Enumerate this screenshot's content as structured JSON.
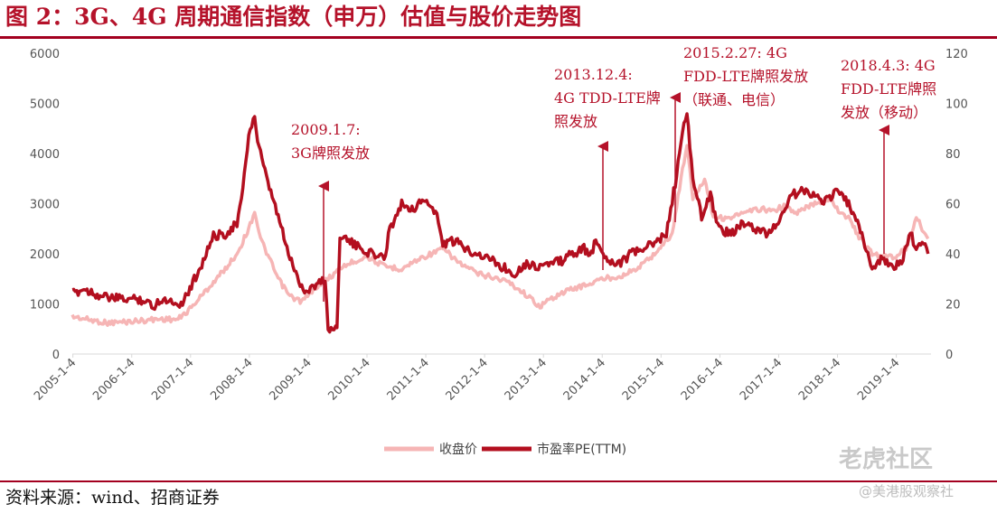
{
  "figure": {
    "title": "图 2：3G、4G 周期通信指数（申万）估值与股价走势图",
    "source": "资料来源：wind、招商证券",
    "watermark": "老虎社区",
    "watermark_sub": "@美港股观察社"
  },
  "chart_data": {
    "type": "line",
    "title": "",
    "x_ticks": [
      "2005-1-4",
      "2006-1-4",
      "2007-1-4",
      "2008-1-4",
      "2009-1-4",
      "2010-1-4",
      "2011-1-4",
      "2012-1-4",
      "2013-1-4",
      "2014-1-4",
      "2015-1-4",
      "2016-1-4",
      "2017-1-4",
      "2018-1-4",
      "2019-1-4"
    ],
    "y_left": {
      "min": 0,
      "max": 6000,
      "ticks": [
        0,
        1000,
        2000,
        3000,
        4000,
        5000,
        6000
      ]
    },
    "y_right": {
      "min": 0,
      "max": 120,
      "ticks": [
        0,
        20,
        40,
        60,
        80,
        100,
        120
      ]
    },
    "legend": {
      "position": "bottom"
    },
    "series": [
      {
        "name": "收盘价",
        "axis": "left",
        "color": "#f6b5b5",
        "points": [
          [
            2005.0,
            750
          ],
          [
            2005.3,
            680
          ],
          [
            2005.6,
            620
          ],
          [
            2006.0,
            650
          ],
          [
            2006.5,
            700
          ],
          [
            2006.8,
            690
          ],
          [
            2007.0,
            900
          ],
          [
            2007.3,
            1300
          ],
          [
            2007.6,
            1700
          ],
          [
            2007.8,
            2000
          ],
          [
            2008.0,
            2500
          ],
          [
            2008.1,
            2850
          ],
          [
            2008.2,
            2300
          ],
          [
            2008.35,
            1900
          ],
          [
            2008.5,
            1500
          ],
          [
            2008.7,
            1150
          ],
          [
            2008.9,
            1050
          ],
          [
            2009.0,
            1150
          ],
          [
            2009.2,
            1400
          ],
          [
            2009.4,
            1550
          ],
          [
            2009.6,
            1750
          ],
          [
            2009.8,
            1850
          ],
          [
            2010.0,
            1950
          ],
          [
            2010.3,
            1750
          ],
          [
            2010.6,
            1700
          ],
          [
            2010.9,
            1900
          ],
          [
            2011.1,
            2000
          ],
          [
            2011.3,
            2100
          ],
          [
            2011.6,
            1800
          ],
          [
            2011.9,
            1600
          ],
          [
            2012.1,
            1550
          ],
          [
            2012.4,
            1450
          ],
          [
            2012.7,
            1200
          ],
          [
            2012.95,
            950
          ],
          [
            2013.2,
            1150
          ],
          [
            2013.5,
            1300
          ],
          [
            2013.8,
            1400
          ],
          [
            2014.0,
            1500
          ],
          [
            2014.3,
            1550
          ],
          [
            2014.6,
            1700
          ],
          [
            2014.9,
            2000
          ],
          [
            2015.2,
            2400
          ],
          [
            2015.35,
            3500
          ],
          [
            2015.45,
            4200
          ],
          [
            2015.55,
            3100
          ],
          [
            2015.75,
            3500
          ],
          [
            2015.9,
            2750
          ],
          [
            2016.1,
            2700
          ],
          [
            2016.4,
            2800
          ],
          [
            2016.7,
            2900
          ],
          [
            2016.9,
            2850
          ],
          [
            2017.1,
            2950
          ],
          [
            2017.3,
            2800
          ],
          [
            2017.6,
            3000
          ],
          [
            2017.9,
            3100
          ],
          [
            2018.0,
            2900
          ],
          [
            2018.2,
            2700
          ],
          [
            2018.4,
            2300
          ],
          [
            2018.6,
            2000
          ],
          [
            2018.8,
            1950
          ],
          [
            2019.0,
            1950
          ],
          [
            2019.2,
            2150
          ],
          [
            2019.35,
            2750
          ],
          [
            2019.45,
            2500
          ],
          [
            2019.55,
            2300
          ]
        ]
      },
      {
        "name": "市盈率PE(TTM)",
        "axis": "right",
        "color": "#b30f1f",
        "points": [
          [
            2005.0,
            24
          ],
          [
            2005.2,
            26
          ],
          [
            2005.5,
            23
          ],
          [
            2005.8,
            22
          ],
          [
            2006.1,
            22
          ],
          [
            2006.3,
            21
          ],
          [
            2006.35,
            18
          ],
          [
            2006.5,
            22
          ],
          [
            2006.7,
            21
          ],
          [
            2006.85,
            20
          ],
          [
            2007.0,
            26
          ],
          [
            2007.2,
            36
          ],
          [
            2007.4,
            47
          ],
          [
            2007.6,
            48
          ],
          [
            2007.8,
            52
          ],
          [
            2007.9,
            65
          ],
          [
            2008.0,
            88
          ],
          [
            2008.1,
            95
          ],
          [
            2008.15,
            85
          ],
          [
            2008.3,
            70
          ],
          [
            2008.5,
            55
          ],
          [
            2008.65,
            42
          ],
          [
            2008.8,
            32
          ],
          [
            2008.95,
            25
          ],
          [
            2009.1,
            27
          ],
          [
            2009.3,
            30
          ],
          [
            2009.35,
            10
          ],
          [
            2009.5,
            10
          ],
          [
            2009.55,
            48
          ],
          [
            2009.7,
            45
          ],
          [
            2009.9,
            42
          ],
          [
            2010.1,
            40
          ],
          [
            2010.3,
            38
          ],
          [
            2010.4,
            50
          ],
          [
            2010.6,
            60
          ],
          [
            2010.8,
            58
          ],
          [
            2011.0,
            62
          ],
          [
            2011.2,
            55
          ],
          [
            2011.3,
            44
          ],
          [
            2011.5,
            45
          ],
          [
            2011.7,
            42
          ],
          [
            2011.9,
            40
          ],
          [
            2012.1,
            38
          ],
          [
            2012.3,
            35
          ],
          [
            2012.5,
            32
          ],
          [
            2012.7,
            36
          ],
          [
            2012.9,
            35
          ],
          [
            2013.1,
            36
          ],
          [
            2013.3,
            37
          ],
          [
            2013.5,
            40
          ],
          [
            2013.7,
            42
          ],
          [
            2013.8,
            39
          ],
          [
            2013.9,
            45
          ],
          [
            2014.1,
            38
          ],
          [
            2014.3,
            36
          ],
          [
            2014.5,
            40
          ],
          [
            2014.7,
            42
          ],
          [
            2014.9,
            44
          ],
          [
            2015.1,
            48
          ],
          [
            2015.25,
            68
          ],
          [
            2015.35,
            85
          ],
          [
            2015.45,
            96
          ],
          [
            2015.55,
            70
          ],
          [
            2015.7,
            55
          ],
          [
            2015.85,
            63
          ],
          [
            2016.0,
            50
          ],
          [
            2016.2,
            48
          ],
          [
            2016.4,
            52
          ],
          [
            2016.6,
            50
          ],
          [
            2016.8,
            48
          ],
          [
            2017.0,
            52
          ],
          [
            2017.2,
            63
          ],
          [
            2017.4,
            65
          ],
          [
            2017.6,
            64
          ],
          [
            2017.8,
            61
          ],
          [
            2018.0,
            65
          ],
          [
            2018.2,
            60
          ],
          [
            2018.35,
            52
          ],
          [
            2018.5,
            42
          ],
          [
            2018.6,
            34
          ],
          [
            2018.75,
            38
          ],
          [
            2018.9,
            35
          ],
          [
            2019.1,
            36
          ],
          [
            2019.25,
            48
          ],
          [
            2019.35,
            42
          ],
          [
            2019.45,
            45
          ],
          [
            2019.55,
            40
          ]
        ]
      }
    ],
    "annotations": [
      {
        "lines": [
          "2009.1.7:",
          "3G牌照发放"
        ],
        "x": 2009.0
      },
      {
        "lines": [
          "2013.12.4:",
          "4G TDD-LTE牌",
          "照发放"
        ],
        "x": 2013.93
      },
      {
        "lines": [
          "2015.2.27: 4G",
          "FDD-LTE牌照发放",
          "（联通、电信）"
        ],
        "x": 2015.15
      },
      {
        "lines": [
          "2018.4.3: 4G",
          "FDD-LTE牌照",
          "发放（移动）"
        ],
        "x": 2018.25
      }
    ]
  }
}
